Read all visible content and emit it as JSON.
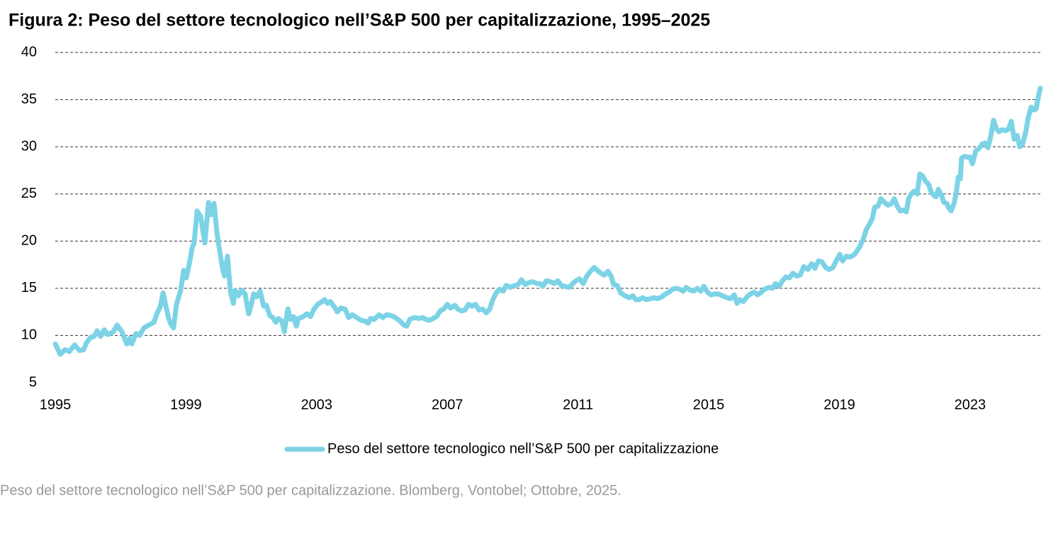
{
  "chart_data": {
    "type": "line",
    "title": "Figura 2: Peso del settore tecnologico nell’S&P 500 per capitalizzazione, 1995–2025",
    "caption": "Peso del settore tecnologico nell’S&P 500 per capitalizzazione. Blomberg, Vontobel; Ottobre, 2025.",
    "x": [
      1995.0,
      1995.15,
      1995.3,
      1995.43,
      1995.59,
      1995.74,
      1995.87,
      1995.95,
      1996.08,
      1996.19,
      1996.28,
      1996.39,
      1996.5,
      1996.61,
      1996.78,
      1996.89,
      1997.04,
      1997.19,
      1997.28,
      1997.34,
      1997.47,
      1997.58,
      1997.71,
      1997.86,
      1998.02,
      1998.12,
      1998.21,
      1998.3,
      1998.38,
      1998.47,
      1998.54,
      1998.62,
      1998.71,
      1998.84,
      1998.93,
      1999.01,
      1999.12,
      1999.19,
      1999.25,
      1999.34,
      1999.45,
      1999.58,
      1999.69,
      1999.77,
      1999.86,
      1999.95,
      2000.03,
      2000.12,
      2000.18,
      2000.27,
      2000.36,
      2000.45,
      2000.51,
      2000.6,
      2000.71,
      2000.81,
      2000.92,
      2001.01,
      2001.07,
      2001.16,
      2001.27,
      2001.38,
      2001.46,
      2001.57,
      2001.66,
      2001.75,
      2001.83,
      2001.94,
      2002.01,
      2002.12,
      2002.2,
      2002.29,
      2002.38,
      2002.44,
      2002.59,
      2002.7,
      2002.81,
      2002.92,
      2003.03,
      2003.13,
      2003.24,
      2003.33,
      2003.42,
      2003.55,
      2003.63,
      2003.74,
      2003.87,
      2003.98,
      2004.09,
      2004.22,
      2004.37,
      2004.5,
      2004.57,
      2004.65,
      2004.76,
      2004.91,
      2005.02,
      2005.15,
      2005.28,
      2005.41,
      2005.56,
      2005.67,
      2005.76,
      2005.85,
      2005.98,
      2006.13,
      2006.24,
      2006.35,
      2006.45,
      2006.56,
      2006.67,
      2006.78,
      2006.89,
      2007.0,
      2007.1,
      2007.23,
      2007.32,
      2007.43,
      2007.54,
      2007.65,
      2007.76,
      2007.86,
      2007.97,
      2008.08,
      2008.19,
      2008.3,
      2008.38,
      2008.49,
      2008.6,
      2008.71,
      2008.8,
      2008.93,
      2009.06,
      2009.17,
      2009.27,
      2009.38,
      2009.49,
      2009.62,
      2009.73,
      2009.84,
      2009.92,
      2010.03,
      2010.16,
      2010.27,
      2010.38,
      2010.49,
      2010.6,
      2010.73,
      2010.84,
      2010.94,
      2011.05,
      2011.16,
      2011.27,
      2011.38,
      2011.49,
      2011.59,
      2011.7,
      2011.81,
      2011.92,
      2012.01,
      2012.09,
      2012.2,
      2012.31,
      2012.44,
      2012.57,
      2012.68,
      2012.77,
      2012.87,
      2012.98,
      2013.09,
      2013.22,
      2013.33,
      2013.44,
      2013.57,
      2013.68,
      2013.79,
      2013.89,
      2014.0,
      2014.11,
      2014.22,
      2014.31,
      2014.44,
      2014.54,
      2014.65,
      2014.76,
      2014.85,
      2014.96,
      2015.07,
      2015.2,
      2015.3,
      2015.43,
      2015.56,
      2015.67,
      2015.78,
      2015.87,
      2015.95,
      2016.06,
      2016.17,
      2016.28,
      2016.39,
      2016.5,
      2016.61,
      2016.71,
      2016.84,
      2016.95,
      2017.04,
      2017.15,
      2017.26,
      2017.36,
      2017.47,
      2017.58,
      2017.69,
      2017.8,
      2017.91,
      2018.04,
      2018.15,
      2018.25,
      2018.36,
      2018.47,
      2018.58,
      2018.69,
      2018.8,
      2018.9,
      2019.01,
      2019.1,
      2019.21,
      2019.32,
      2019.43,
      2019.51,
      2019.62,
      2019.73,
      2019.82,
      2019.92,
      2020.01,
      2020.08,
      2020.18,
      2020.27,
      2020.38,
      2020.49,
      2020.6,
      2020.68,
      2020.77,
      2020.86,
      2020.97,
      2021.05,
      2021.12,
      2021.2,
      2021.29,
      2021.38,
      2021.46,
      2021.55,
      2021.64,
      2021.72,
      2021.81,
      2021.9,
      2021.96,
      2022.03,
      2022.12,
      2022.2,
      2022.29,
      2022.35,
      2022.42,
      2022.51,
      2022.57,
      2022.64,
      2022.7,
      2022.74,
      2022.83,
      2022.92,
      2023.0,
      2023.07,
      2023.18,
      2023.27,
      2023.37,
      2023.46,
      2023.55,
      2023.63,
      2023.72,
      2023.81,
      2023.89,
      2023.98,
      2024.09,
      2024.18,
      2024.26,
      2024.35,
      2024.44,
      2024.52,
      2024.61,
      2024.7,
      2024.78,
      2024.87,
      2024.96,
      2025.02,
      2025.09,
      2025.15
    ],
    "series": [
      {
        "name": "Peso del settore tecnologico nell’S&P 500 per capitalizzazione",
        "color": "#7dd3e6",
        "values": [
          9.1,
          8.0,
          8.5,
          8.3,
          9.0,
          8.4,
          8.5,
          9.2,
          9.8,
          9.9,
          10.5,
          9.9,
          10.6,
          10.1,
          10.4,
          11.1,
          10.4,
          9.1,
          9.7,
          9.1,
          10.2,
          10.0,
          10.8,
          11.1,
          11.4,
          12.4,
          13.0,
          14.5,
          13.2,
          11.8,
          11.2,
          10.8,
          13.3,
          14.8,
          16.9,
          16.1,
          17.9,
          19.3,
          19.8,
          23.2,
          22.6,
          19.8,
          24.1,
          22.8,
          24.0,
          20.8,
          19.0,
          17.1,
          16.3,
          18.4,
          14.7,
          13.4,
          14.8,
          14.2,
          14.8,
          14.4,
          12.3,
          13.4,
          14.4,
          14.1,
          14.7,
          13.1,
          13.2,
          12.1,
          11.9,
          11.4,
          11.8,
          11.5,
          10.4,
          12.8,
          11.7,
          12.0,
          11.0,
          11.8,
          12.0,
          12.3,
          12.0,
          12.8,
          13.3,
          13.5,
          13.8,
          13.4,
          13.6,
          13.0,
          12.5,
          12.9,
          12.8,
          11.9,
          12.2,
          11.9,
          11.6,
          11.5,
          11.3,
          11.8,
          11.7,
          12.2,
          11.9,
          12.2,
          12.1,
          11.9,
          11.5,
          11.1,
          11.0,
          11.7,
          11.9,
          11.8,
          11.9,
          11.7,
          11.6,
          11.8,
          12.0,
          12.6,
          12.8,
          13.3,
          12.9,
          13.2,
          12.8,
          12.6,
          12.7,
          13.3,
          13.1,
          13.3,
          12.7,
          12.8,
          12.4,
          12.8,
          13.7,
          14.5,
          14.9,
          14.7,
          15.3,
          15.1,
          15.3,
          15.4,
          15.9,
          15.4,
          15.6,
          15.7,
          15.5,
          15.5,
          15.2,
          15.8,
          15.7,
          15.5,
          15.8,
          15.3,
          15.2,
          15.1,
          15.5,
          15.8,
          16.0,
          15.5,
          16.3,
          16.8,
          17.2,
          16.9,
          16.6,
          16.4,
          16.8,
          16.3,
          15.4,
          15.3,
          14.5,
          14.2,
          14.0,
          14.2,
          13.8,
          13.8,
          14.0,
          13.8,
          13.9,
          14.0,
          13.9,
          14.1,
          14.4,
          14.6,
          14.9,
          15.0,
          14.9,
          14.7,
          15.1,
          14.8,
          14.7,
          15.0,
          14.7,
          15.2,
          14.6,
          14.3,
          14.4,
          14.4,
          14.2,
          14.0,
          13.9,
          14.3,
          13.4,
          13.8,
          13.6,
          14.1,
          14.4,
          14.6,
          14.3,
          14.6,
          14.9,
          15.1,
          15.0,
          15.5,
          15.2,
          15.8,
          16.2,
          16.1,
          16.6,
          16.3,
          16.4,
          17.3,
          17.0,
          17.6,
          17.1,
          17.9,
          17.8,
          17.2,
          17.0,
          17.2,
          17.9,
          18.6,
          17.9,
          18.4,
          18.3,
          18.5,
          18.8,
          19.4,
          20.2,
          21.2,
          21.8,
          22.4,
          23.6,
          23.7,
          24.5,
          24.1,
          23.8,
          24.0,
          24.5,
          23.7,
          23.2,
          23.3,
          23.1,
          24.5,
          25.0,
          25.3,
          25.0,
          27.1,
          26.9,
          26.3,
          26.1,
          25.2,
          24.8,
          24.7,
          25.5,
          24.9,
          24.1,
          24.0,
          23.5,
          23.2,
          24.0,
          25.0,
          26.8,
          26.6,
          28.8,
          29.0,
          28.9,
          28.9,
          28.2,
          29.6,
          29.8,
          30.3,
          30.4,
          29.9,
          31.1,
          32.8,
          31.9,
          31.6,
          31.8,
          31.7,
          31.9,
          32.7,
          30.8,
          31.2,
          30.0,
          30.3,
          31.5,
          33.1,
          34.2,
          33.9,
          34.0,
          35.3,
          36.2
        ]
      }
    ],
    "xlim": [
      1995,
      2025.15
    ],
    "xticks": [
      1995,
      1999,
      2003,
      2007,
      2011,
      2015,
      2019,
      2023
    ],
    "ylim": [
      5,
      40
    ],
    "yticks": [
      5,
      10,
      15,
      20,
      25,
      30,
      35,
      40
    ],
    "grid": true,
    "legend": "bottom"
  }
}
